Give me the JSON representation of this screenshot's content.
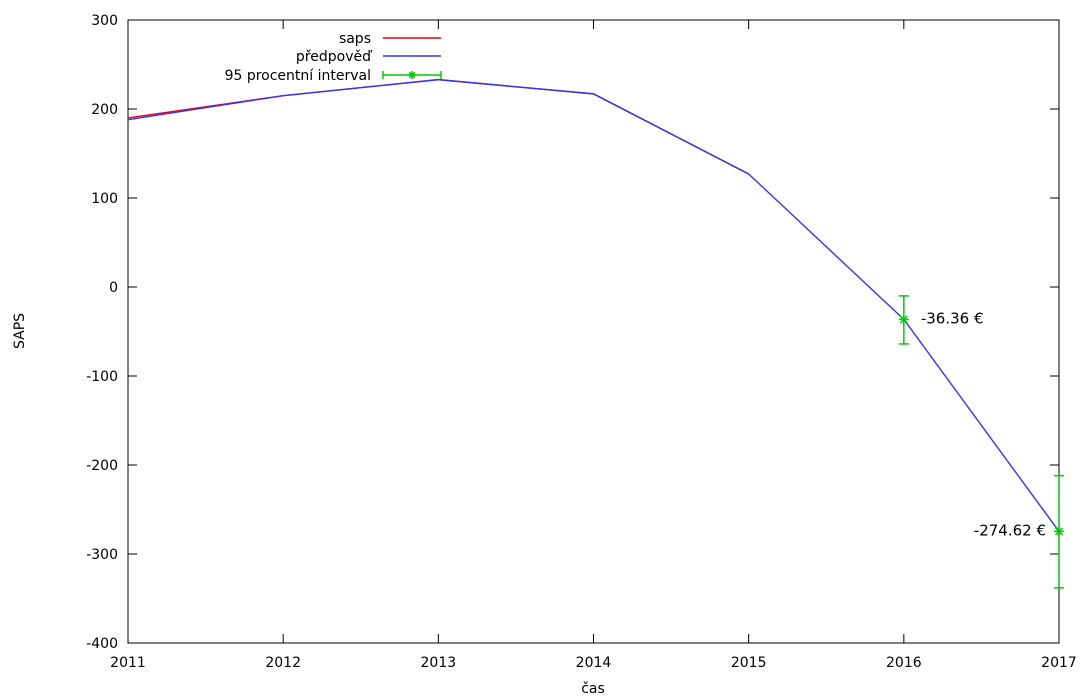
{
  "chart_data": {
    "type": "line",
    "title": "",
    "xlabel": "čas",
    "ylabel": "SAPS",
    "xlim": [
      2011,
      2017
    ],
    "ylim": [
      -400,
      300
    ],
    "x_ticks": [
      "2011",
      "2012",
      "2013",
      "2014",
      "2015",
      "2016",
      "2017"
    ],
    "y_ticks": [
      "300",
      "200",
      "100",
      "0",
      "-100",
      "-200",
      "-300",
      "-400"
    ],
    "grid": false,
    "legend_position": "top-left",
    "series": [
      {
        "name": "saps",
        "color": "#e8000b",
        "x": [
          2011,
          2012,
          2013,
          2014,
          2015
        ],
        "y": [
          190,
          215,
          233,
          217,
          127
        ]
      },
      {
        "name": "předpověď",
        "color": "#3333ff",
        "x": [
          2011,
          2012,
          2013,
          2014,
          2015,
          2016,
          2017
        ],
        "y": [
          188,
          215,
          233,
          217,
          127,
          -36.36,
          -274.62
        ]
      },
      {
        "name": "95 procentní interval",
        "color": "#00cc00",
        "type": "errorbar",
        "x": [
          2016,
          2017
        ],
        "y": [
          -36.36,
          -274.62
        ],
        "lower": [
          -64,
          -338
        ],
        "upper": [
          -10,
          -212
        ]
      }
    ],
    "annotations": [
      {
        "text": "-36.36 €",
        "x": 2016,
        "y": -36.36,
        "side": "right"
      },
      {
        "text": "-274.62 €",
        "x": 2017,
        "y": -274.62,
        "side": "left"
      }
    ]
  }
}
